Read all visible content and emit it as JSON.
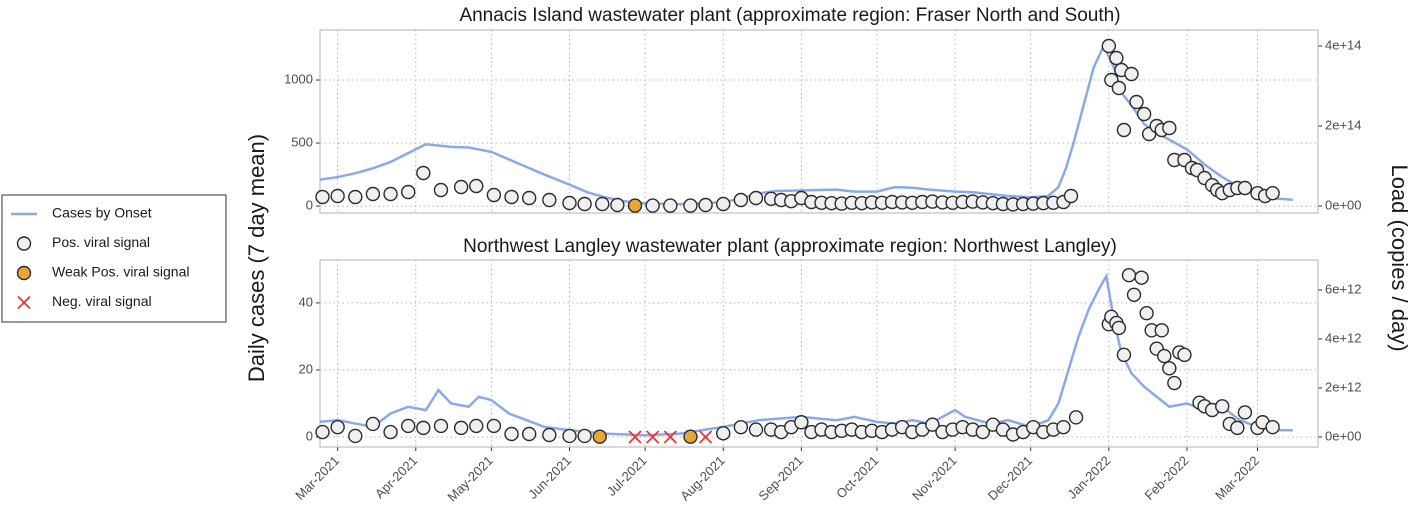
{
  "chart_data": [
    {
      "type": "line",
      "title": "Annacis Island wastewater plant (approximate region: Fraser North and South)",
      "ylabel": "Daily cases (7 day mean)",
      "y2label": "Load (copies / day)",
      "ylim": [
        -55,
        1397
      ],
      "yticks": [
        0,
        500,
        1000
      ],
      "y2lim": [
        -17500000000000,
        440000000000000
      ],
      "y2ticks": [
        {
          "value": 0,
          "label": "0e+00"
        },
        {
          "value": 200000000000000,
          "label": "2e+14"
        },
        {
          "value": 400000000000000,
          "label": "4e+14"
        }
      ],
      "grid": true,
      "legend": "left",
      "series": [
        {
          "name": "Cases by Onset",
          "marker": "line",
          "color": "#88abe8",
          "x": [
            "2021-02-22",
            "2021-03-01",
            "2021-03-08",
            "2021-03-15",
            "2021-03-22",
            "2021-03-29",
            "2021-04-05",
            "2021-04-15",
            "2021-04-22",
            "2021-05-01",
            "2021-05-08",
            "2021-05-15",
            "2021-05-22",
            "2021-06-01",
            "2021-06-08",
            "2021-06-15",
            "2021-06-22",
            "2021-07-01",
            "2021-07-15",
            "2021-08-01",
            "2021-08-08",
            "2021-08-15",
            "2021-08-22",
            "2021-09-01",
            "2021-09-15",
            "2021-09-22",
            "2021-10-01",
            "2021-10-08",
            "2021-10-15",
            "2021-10-22",
            "2021-11-01",
            "2021-11-08",
            "2021-11-15",
            "2021-11-22",
            "2021-12-01",
            "2021-12-08",
            "2021-12-12",
            "2021-12-15",
            "2021-12-18",
            "2021-12-22",
            "2021-12-26",
            "2021-12-30",
            "2022-01-03",
            "2022-01-06",
            "2022-01-10",
            "2022-01-15",
            "2022-01-22",
            "2022-02-01",
            "2022-02-08",
            "2022-02-15",
            "2022-02-22",
            "2022-03-01",
            "2022-03-08",
            "2022-03-15"
          ],
          "values": [
            210,
            230,
            260,
            300,
            350,
            420,
            490,
            470,
            465,
            430,
            370,
            310,
            250,
            170,
            110,
            70,
            40,
            20,
            15,
            30,
            60,
            100,
            120,
            125,
            130,
            115,
            115,
            150,
            145,
            130,
            115,
            110,
            95,
            80,
            70,
            80,
            150,
            300,
            500,
            800,
            1100,
            1270,
            1100,
            900,
            800,
            650,
            560,
            450,
            330,
            230,
            150,
            90,
            60,
            50
          ]
        },
        {
          "name": "Pos. viral signal",
          "marker": "circle",
          "color": "#f0f0f0",
          "axis": "y2",
          "x": [
            "2021-02-23",
            "2021-03-01",
            "2021-03-08",
            "2021-03-15",
            "2021-03-22",
            "2021-03-29",
            "2021-04-04",
            "2021-04-11",
            "2021-04-19",
            "2021-04-25",
            "2021-05-02",
            "2021-05-09",
            "2021-05-16",
            "2021-05-24",
            "2021-06-01",
            "2021-06-07",
            "2021-06-14",
            "2021-06-20",
            "2021-07-04",
            "2021-07-11",
            "2021-07-19",
            "2021-07-25",
            "2021-08-01",
            "2021-08-08",
            "2021-08-14",
            "2021-08-20",
            "2021-08-24",
            "2021-08-28",
            "2021-09-01",
            "2021-09-05",
            "2021-09-09",
            "2021-09-13",
            "2021-09-17",
            "2021-09-21",
            "2021-09-25",
            "2021-09-29",
            "2021-10-03",
            "2021-10-07",
            "2021-10-11",
            "2021-10-15",
            "2021-10-19",
            "2021-10-23",
            "2021-10-27",
            "2021-10-31",
            "2021-11-04",
            "2021-11-08",
            "2021-11-12",
            "2021-11-16",
            "2021-11-20",
            "2021-11-24",
            "2021-11-28",
            "2021-12-02",
            "2021-12-06",
            "2021-12-10",
            "2021-12-14",
            "2021-12-17",
            "2022-01-01",
            "2022-01-02",
            "2022-01-04",
            "2022-01-05",
            "2022-01-06",
            "2022-01-07",
            "2022-01-10",
            "2022-01-12",
            "2022-01-15",
            "2022-01-17",
            "2022-01-20",
            "2022-01-22",
            "2022-01-25",
            "2022-01-27",
            "2022-01-31",
            "2022-02-03",
            "2022-02-05",
            "2022-02-08",
            "2022-02-11",
            "2022-02-13",
            "2022-02-15",
            "2022-02-18",
            "2022-02-21",
            "2022-02-24",
            "2022-03-01",
            "2022-03-04",
            "2022-03-07"
          ],
          "values": [
            22500000000000.0,
            25000000000000.0,
            22500000000000.0,
            30000000000000.0,
            30000000000000.0,
            35000000000000.0,
            82500000000000.0,
            40000000000000.0,
            47500000000000.0,
            50000000000000.0,
            27500000000000.0,
            22500000000000.0,
            20000000000000.0,
            15000000000000.0,
            7500000000000.0,
            5000000000000.0,
            5000000000000.0,
            2500000000000.0,
            1000000000000.0,
            1000000000000.0,
            1000000000000.0,
            2500000000000.0,
            5000000000000.0,
            15000000000000.0,
            20000000000000.0,
            18000000000000.0,
            15000000000000.0,
            12000000000000.0,
            20000000000000.0,
            10000000000000.0,
            8000000000000.0,
            7000000000000.0,
            6000000000000.0,
            8000000000000.0,
            7000000000000.0,
            9000000000000.0,
            8000000000000.0,
            10000000000000.0,
            9000000000000.0,
            8000000000000.0,
            10000000000000.0,
            11000000000000.0,
            9000000000000.0,
            8000000000000.0,
            10000000000000.0,
            11000000000000.0,
            9000000000000.0,
            7000000000000.0,
            5000000000000.0,
            4000000000000.0,
            5000000000000.0,
            6000000000000.0,
            7000000000000.0,
            8000000000000.0,
            10000000000000.0,
            25000000000000.0,
            400000000000000.0,
            315000000000000.0,
            370000000000000.0,
            295000000000000.0,
            340000000000000.0,
            190000000000000.0,
            330000000000000.0,
            260000000000000.0,
            230000000000000.0,
            180000000000000.0,
            200000000000000.0,
            190000000000000.0,
            195000000000000.0,
            115000000000000.0,
            115000000000000.0,
            95000000000000.0,
            90000000000000.0,
            70000000000000.0,
            52000000000000.0,
            40000000000000.0,
            32000000000000.0,
            40000000000000.0,
            45000000000000.0,
            45000000000000.0,
            32000000000000.0,
            25000000000000.0,
            32000000000000.0
          ]
        },
        {
          "name": "Weak Pos. viral signal",
          "marker": "circle",
          "color": "#e9a535",
          "axis": "y2",
          "x": [
            "2021-06-27"
          ],
          "values": [
            1000000000000.0
          ]
        },
        {
          "name": "Neg. viral signal",
          "marker": "cross",
          "color": "#ee3535",
          "axis": "y2",
          "x": [],
          "values": []
        }
      ]
    },
    {
      "type": "line",
      "title": "Northwest Langley wastewater plant (approximate region: Northwest Langley)",
      "xlim": [
        "2021-02-22",
        "2022-03-25"
      ],
      "xticks": [
        {
          "value": "2021-03-01",
          "label": "Mar-2021"
        },
        {
          "value": "2021-04-01",
          "label": "Apr-2021"
        },
        {
          "value": "2021-05-01",
          "label": "May-2021"
        },
        {
          "value": "2021-06-01",
          "label": "Jun-2021"
        },
        {
          "value": "2021-07-01",
          "label": "Jul-2021"
        },
        {
          "value": "2021-08-01",
          "label": "Aug-2021"
        },
        {
          "value": "2021-09-01",
          "label": "Sep-2021"
        },
        {
          "value": "2021-10-01",
          "label": "Oct-2021"
        },
        {
          "value": "2021-11-01",
          "label": "Nov-2021"
        },
        {
          "value": "2021-12-01",
          "label": "Dec-2021"
        },
        {
          "value": "2022-01-01",
          "label": "Jan-2022"
        },
        {
          "value": "2022-02-01",
          "label": "Feb-2022"
        },
        {
          "value": "2022-03-01",
          "label": "Mar-2022"
        }
      ],
      "ylim": [
        -3,
        52.8
      ],
      "yticks": [
        0,
        20,
        40
      ],
      "y2lim": [
        -410000000000,
        7220000000000
      ],
      "y2ticks": [
        {
          "value": 0,
          "label": "0e+00"
        },
        {
          "value": 2000000000000,
          "label": "2e+12"
        },
        {
          "value": 4000000000000,
          "label": "4e+12"
        },
        {
          "value": 6000000000000,
          "label": "6e+12"
        }
      ],
      "grid": true,
      "series": [
        {
          "marker": "line",
          "color": "#88abe8",
          "x": [
            "2021-02-22",
            "2021-03-01",
            "2021-03-08",
            "2021-03-15",
            "2021-03-22",
            "2021-03-29",
            "2021-04-05",
            "2021-04-10",
            "2021-04-15",
            "2021-04-22",
            "2021-04-26",
            "2021-05-01",
            "2021-05-08",
            "2021-05-15",
            "2021-05-22",
            "2021-06-01",
            "2021-06-15",
            "2021-07-01",
            "2021-07-15",
            "2021-08-01",
            "2021-08-15",
            "2021-09-01",
            "2021-09-15",
            "2021-09-22",
            "2021-10-01",
            "2021-10-08",
            "2021-10-15",
            "2021-10-22",
            "2021-11-01",
            "2021-11-05",
            "2021-11-15",
            "2021-11-22",
            "2021-12-01",
            "2021-12-08",
            "2021-12-12",
            "2021-12-16",
            "2021-12-20",
            "2021-12-24",
            "2021-12-28",
            "2021-12-31",
            "2022-01-03",
            "2022-01-06",
            "2022-01-10",
            "2022-01-15",
            "2022-01-20",
            "2022-01-25",
            "2022-02-01",
            "2022-02-08",
            "2022-02-15",
            "2022-02-22",
            "2022-03-01",
            "2022-03-08",
            "2022-03-15"
          ],
          "values": [
            4.5,
            5,
            4,
            3,
            7,
            9,
            8,
            14,
            10,
            9,
            12,
            11,
            7,
            5,
            3,
            2,
            1,
            0.5,
            1,
            3,
            5,
            6,
            5,
            6,
            4.5,
            4,
            5,
            4,
            8,
            6,
            4,
            5,
            3,
            5,
            10,
            20,
            30,
            38,
            44,
            48,
            35,
            25,
            19,
            15,
            12,
            9,
            10,
            8,
            9,
            5,
            3,
            2,
            2
          ]
        },
        {
          "marker": "circle",
          "color": "#f0f0f0",
          "axis": "y2",
          "x": [
            "2021-02-23",
            "2021-03-01",
            "2021-03-08",
            "2021-03-15",
            "2021-03-22",
            "2021-03-29",
            "2021-04-04",
            "2021-04-11",
            "2021-04-19",
            "2021-04-25",
            "2021-05-02",
            "2021-05-09",
            "2021-05-16",
            "2021-05-24",
            "2021-06-01",
            "2021-06-07",
            "2021-08-01",
            "2021-08-08",
            "2021-08-14",
            "2021-08-20",
            "2021-08-24",
            "2021-08-28",
            "2021-09-01",
            "2021-09-05",
            "2021-09-09",
            "2021-09-13",
            "2021-09-17",
            "2021-09-21",
            "2021-09-25",
            "2021-09-29",
            "2021-10-03",
            "2021-10-07",
            "2021-10-11",
            "2021-10-15",
            "2021-10-19",
            "2021-10-23",
            "2021-10-27",
            "2021-10-31",
            "2021-11-04",
            "2021-11-08",
            "2021-11-12",
            "2021-11-16",
            "2021-11-20",
            "2021-11-24",
            "2021-11-28",
            "2021-12-02",
            "2021-12-06",
            "2021-12-10",
            "2021-12-14",
            "2021-12-19",
            "2022-01-01",
            "2022-01-02",
            "2022-01-04",
            "2022-01-05",
            "2022-01-07",
            "2022-01-09",
            "2022-01-11",
            "2022-01-14",
            "2022-01-16",
            "2022-01-18",
            "2022-01-20",
            "2022-01-22",
            "2022-01-23",
            "2022-01-25",
            "2022-01-27",
            "2022-01-29",
            "2022-01-31",
            "2022-02-06",
            "2022-02-08",
            "2022-02-11",
            "2022-02-15",
            "2022-02-18",
            "2022-02-21",
            "2022-02-24",
            "2022-03-01",
            "2022-03-03",
            "2022-03-07"
          ],
          "values": [
            200000000000.0,
            400000000000.0,
            40000000000.0,
            530000000000.0,
            200000000000.0,
            450000000000.0,
            370000000000.0,
            450000000000.0,
            370000000000.0,
            450000000000.0,
            450000000000.0,
            120000000000.0,
            120000000000.0,
            80000000000.0,
            40000000000.0,
            40000000000.0,
            150000000000.0,
            400000000000.0,
            300000000000.0,
            300000000000.0,
            200000000000.0,
            400000000000.0,
            600000000000.0,
            200000000000.0,
            300000000000.0,
            200000000000.0,
            250000000000.0,
            300000000000.0,
            200000000000.0,
            250000000000.0,
            200000000000.0,
            300000000000.0,
            400000000000.0,
            200000000000.0,
            300000000000.0,
            500000000000.0,
            200000000000.0,
            300000000000.0,
            400000000000.0,
            300000000000.0,
            200000000000.0,
            500000000000.0,
            300000000000.0,
            100000000000.0,
            200000000000.0,
            400000000000.0,
            200000000000.0,
            300000000000.0,
            400000000000.0,
            800000000000.0,
            4600000000000.0,
            4900000000000.0,
            4650000000000.0,
            4450000000000.0,
            3350000000000.0,
            6600000000000.0,
            5800000000000.0,
            6500000000000.0,
            5050000000000.0,
            4350000000000.0,
            3600000000000.0,
            4350000000000.0,
            3300000000000.0,
            2800000000000.0,
            2200000000000.0,
            3450000000000.0,
            3350000000000.0,
            1400000000000.0,
            1250000000000.0,
            1100000000000.0,
            1250000000000.0,
            530000000000.0,
            370000000000.0,
            1000000000000.0,
            370000000000.0,
            600000000000.0,
            400000000000.0
          ]
        },
        {
          "marker": "circle",
          "color": "#e9a535",
          "axis": "y2",
          "x": [
            "2021-06-13",
            "2021-07-19"
          ],
          "values": [
            10000000000.0,
            10000000000.0
          ]
        },
        {
          "marker": "cross",
          "color": "#ee3535",
          "axis": "y2",
          "x": [
            "2021-06-27",
            "2021-07-04",
            "2021-07-11",
            "2021-07-25"
          ],
          "values": [
            0,
            0,
            0,
            0
          ]
        }
      ]
    }
  ]
}
